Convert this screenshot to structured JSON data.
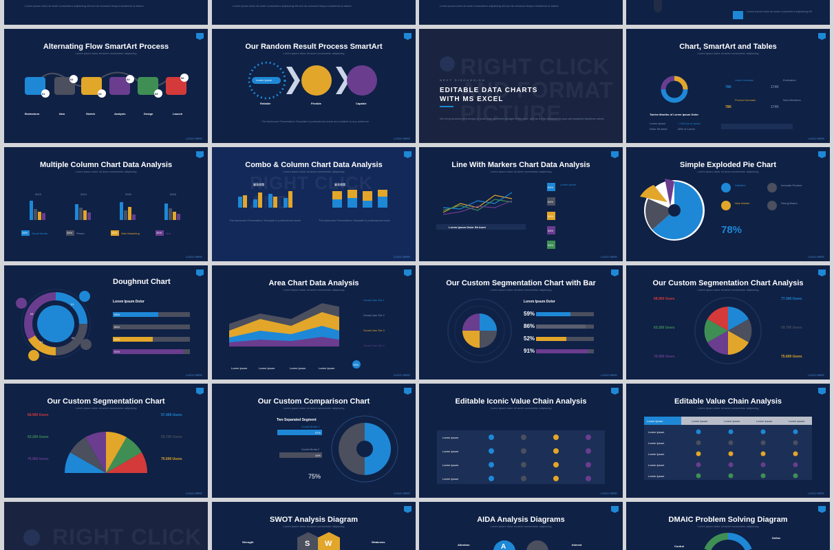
{
  "slides": {
    "alt_flow": {
      "title": "Alternating Flow SmartArt Process",
      "steps": [
        {
          "num": "01",
          "label": "Brainstorm"
        },
        {
          "num": "02",
          "label": "Idea"
        },
        {
          "num": "03",
          "label": "Sketch"
        },
        {
          "num": "04",
          "label": "Analysis"
        },
        {
          "num": "05",
          "label": "Design"
        },
        {
          "num": "06",
          "label": "Launch"
        }
      ]
    },
    "random_result": {
      "title": "Our Random Result Process SmartArt",
      "pill": "Lorem Ipsum",
      "steps": [
        "Reliable",
        "Flexible",
        "Capable"
      ]
    },
    "excel_section": {
      "kicker": "NEXT DISCUSSION",
      "heading_line1": "EDITABLE DATA CHARTS",
      "heading_line2": "WITH MS EXCEL",
      "watermark": "RIGHT CLICK AND FORMAT PICTURE"
    },
    "chart_smartart": {
      "title": "Chart, SmartArt and Tables",
      "caption": "Twelve Months of Lorem Ipsum Dolor",
      "items": [
        {
          "label": "Users Increase",
          "value": "78K"
        },
        {
          "label": "Estimation",
          "value": "174K"
        },
        {
          "label": "Product Increase",
          "value": "78K"
        },
        {
          "label": "New Members",
          "value": "174K"
        }
      ],
      "rows": [
        {
          "name": "Lorem Ipsum",
          "value": "1 155 Am of Ipsum"
        },
        {
          "name": "Dolor Sit Amet",
          "value": "45% of Lorem"
        }
      ]
    },
    "multi_column": {
      "title": "Multiple Column Chart Data Analysis",
      "years": [
        "2013",
        "2014",
        "2015",
        "2016"
      ],
      "legend": [
        {
          "value": "34%",
          "label": "Social Media"
        },
        {
          "value": "34%",
          "label": "Phone"
        },
        {
          "value": "34%",
          "label": "Web Marketing"
        },
        {
          "value": "34%",
          "label": "Mail"
        }
      ]
    },
    "combo_column": {
      "title": "Combo & Column Chart Data Analysis",
      "chart_labels": [
        "圖表標題",
        "圖表標題"
      ]
    },
    "line_markers": {
      "title": "Line With Markers Chart Data Analysis",
      "caption": "Lorem Ipsum Dolor Sit Amet",
      "badges": [
        "54%",
        "54%",
        "54%",
        "54%",
        "54%"
      ],
      "badge_title": "Lorem Ipsum"
    },
    "exploded_pie": {
      "title": "Simple Exploded Pie Chart",
      "stats": [
        "Satisfied",
        "Innovate Product",
        "New Market",
        "Strong Brand"
      ],
      "big_value": "78%"
    },
    "doughnut": {
      "title": "Doughnut Chart",
      "subtitle": "Lorem Ipsum Dolor",
      "nums": [
        "01",
        "02",
        "03",
        "04"
      ],
      "bars": [
        {
          "label": "Lorem Ipsum Dolor",
          "value": "59%"
        },
        {
          "label": "Lorem Ipsum Dolor",
          "value": "86%"
        },
        {
          "label": "Lorem Ipsum Dolor",
          "value": "52%"
        },
        {
          "label": "Lorem Ipsum Dolor",
          "value": "91%"
        }
      ]
    },
    "area_chart": {
      "title": "Area Chart Data Analysis",
      "users": [
        "Social User Est 1",
        "Social User Est 2",
        "Social User Est 3",
        "Social User Est 4"
      ],
      "labels": [
        "Lorem Ipsum",
        "Lorem Ipsum",
        "Lorem Ipsum",
        "Lorem Ipsum"
      ],
      "pct": "78%"
    },
    "seg_bar": {
      "title": "Our Custom Segmentation Chart with Bar",
      "subtitle": "Lorem Ipsum Dolor",
      "values": [
        "59%",
        "86%",
        "52%",
        "91%"
      ]
    },
    "seg_analysis": {
      "title": "Our Custom Segmentation Chart Analysis",
      "users": [
        "68.900 Users",
        "77.300 Users",
        "63.200 Users",
        "59.700 Users",
        "76.900 Users",
        "75.600 Users"
      ]
    },
    "seg_chart": {
      "title": "Our Custom Segmentation Chart",
      "users": [
        "68.900 Users",
        "57.400 Users",
        "63.200 Users",
        "55.700 Users",
        "76.900 Users",
        "75.600 Users"
      ]
    },
    "comparison": {
      "title": "Our Custom Comparison Chart",
      "heading": "Two Separated Segment",
      "rows": [
        {
          "label": "Social Media 1",
          "value": "57%"
        },
        {
          "label": "Social Media 2",
          "value": "43%"
        }
      ],
      "big_value": "75%"
    },
    "iconic_chain": {
      "title": "Editable Iconic Value Chain Analysis",
      "rows": [
        "Lorem Ipsum",
        "Lorem Ipsum",
        "Lorem Ipsum",
        "Lorem Ipsum"
      ]
    },
    "value_chain": {
      "title": "Editable Value Chain Analysis",
      "headers": [
        "Lorem Ipsum",
        "Lorem Ipsum",
        "Lorem Ipsum",
        "Lorem Ipsum",
        "Lorem Ipsum"
      ],
      "rows": [
        "Lorem Ipsum",
        "Lorem Ipsum",
        "Lorem Ipsum",
        "Lorem Ipsum",
        "Lorem Ipsum"
      ]
    },
    "right_click": {
      "watermark": "RIGHT CLICK AND"
    },
    "swot": {
      "title": "SWOT Analysis Diagram",
      "left_label": "Strength",
      "right_label": "Weakness",
      "letters": [
        "S",
        "W"
      ]
    },
    "aida": {
      "title": "AIDA Analysis Diagrams",
      "left_label": "Attention",
      "right_label": "Interest",
      "letter": "A"
    },
    "dmaic": {
      "title": "DMAIC Problem Solving Diagram",
      "labels": [
        "Define",
        "Control"
      ]
    },
    "footer": "LOGO HERE"
  },
  "colors": {
    "slide_bg": "#0f2145",
    "blue": "#1e88d6",
    "yellow": "#e2a62a",
    "purple": "#6a3d8f",
    "grey": "#4b4f5e",
    "green": "#3f8f55",
    "red": "#d43a3a"
  }
}
